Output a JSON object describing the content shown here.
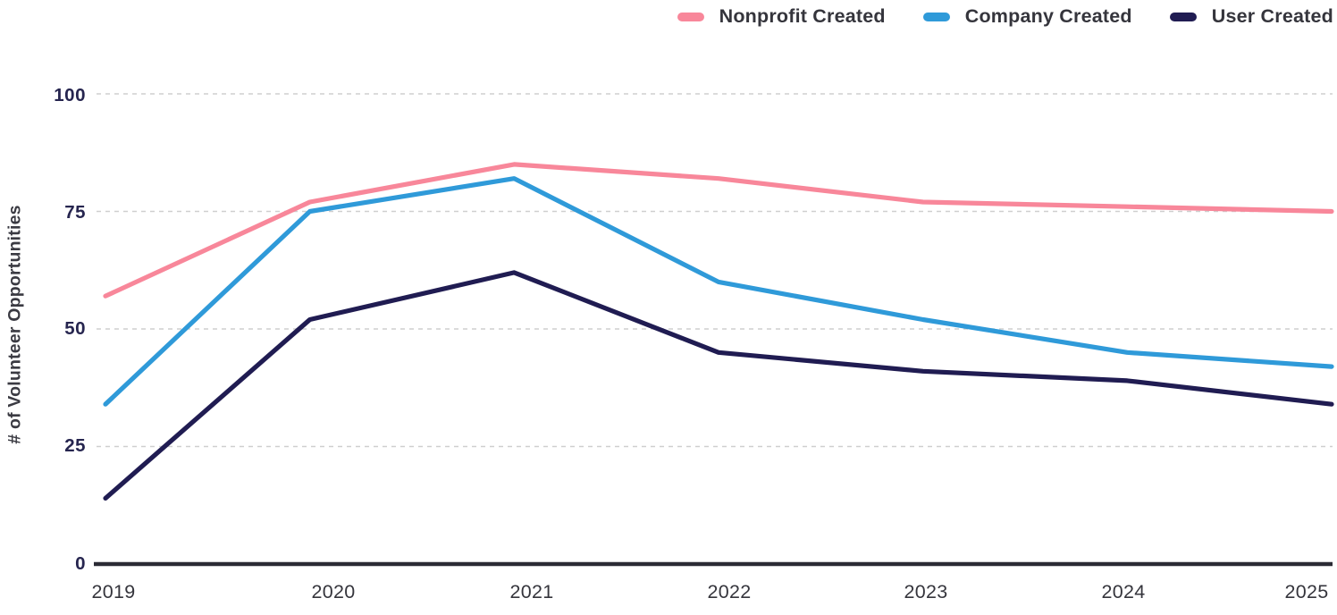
{
  "legend": {
    "items": [
      {
        "label": "Nonprofit Created"
      },
      {
        "label": "Company Created"
      },
      {
        "label": "User Created"
      }
    ]
  },
  "chart_data": {
    "type": "line",
    "ylabel": "# of Volunteer Opportunities",
    "categories": [
      "2019",
      "2020",
      "2021",
      "2022",
      "2023",
      "2024",
      "2025"
    ],
    "series": [
      {
        "name": "Nonprofit Created",
        "color": "#F8879A",
        "values": [
          57,
          77,
          85,
          82,
          77,
          76,
          75
        ]
      },
      {
        "name": "Company Created",
        "color": "#2F9AD9",
        "values": [
          34,
          75,
          82,
          60,
          52,
          45,
          42
        ]
      },
      {
        "name": "User Created",
        "color": "#201C52",
        "values": [
          14,
          52,
          62,
          45,
          41,
          39,
          34
        ]
      }
    ],
    "ylim": [
      0,
      100
    ],
    "y_ticks": [
      0,
      25,
      50,
      75,
      100
    ],
    "y_tick_labels_top_to_bottom": [
      "100",
      "75",
      "50",
      "25",
      "0"
    ],
    "grid": "horizontal-dashed",
    "legend_position": "top-right",
    "axis_colors": {
      "grid_line": "#cfcfcf",
      "axis_line": "#2b2b35",
      "y_tick_text": "#26254f",
      "x_label_text": "#35353c"
    }
  }
}
